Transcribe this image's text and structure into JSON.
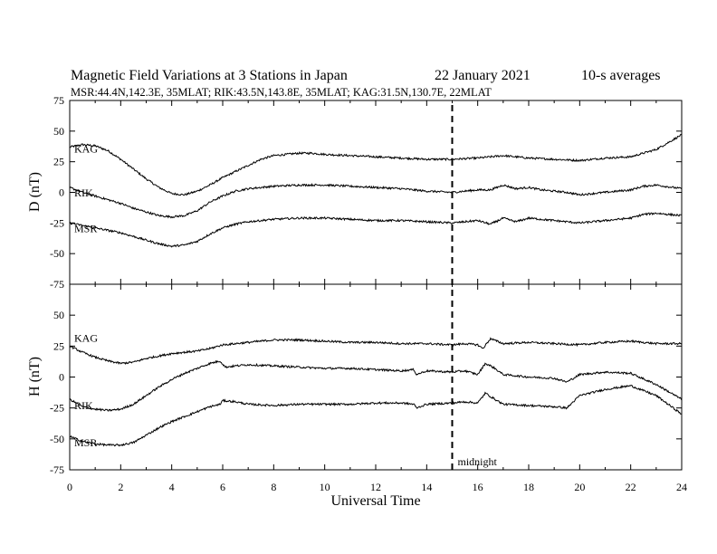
{
  "header": {
    "title": "Magnetic Field Variations at 3 Stations in Japan",
    "date": "22 January  2021",
    "averaging": "10-s averages",
    "stations": "MSR:44.4N,142.3E, 35MLAT;  RIK:43.5N,143.8E, 35MLAT;  KAG:31.5N,130.7E, 22MLAT"
  },
  "chart_data": [
    {
      "type": "line",
      "panel": "top",
      "ylabel": "D (nT)",
      "xlabel": "",
      "xlim": [
        0,
        24
      ],
      "ylim": [
        -75,
        75
      ],
      "xticks": [
        0,
        2,
        4,
        6,
        8,
        10,
        12,
        14,
        16,
        18,
        20,
        22,
        24
      ],
      "yticks": [
        -75,
        -50,
        -25,
        0,
        25,
        50,
        75
      ],
      "ytick_labels": [
        "-75",
        "-50",
        "-25",
        "0",
        "25",
        "50",
        "75"
      ],
      "grid": false,
      "series": [
        {
          "name": "KAG",
          "x": [
            0,
            0.5,
            1,
            1.5,
            2,
            2.5,
            3,
            3.5,
            4,
            4.5,
            5,
            5.5,
            6,
            6.5,
            7,
            7.5,
            8,
            8.5,
            9,
            9.5,
            10,
            11,
            12,
            13,
            14,
            15,
            16,
            16.5,
            17,
            17.5,
            18,
            19,
            20,
            21,
            22,
            23,
            24
          ],
          "y": [
            37,
            39,
            38,
            34,
            27,
            19,
            11,
            4,
            -1,
            -2,
            1,
            6,
            12,
            17,
            22,
            27,
            30,
            31,
            32,
            32,
            31,
            30,
            29,
            28,
            27,
            27,
            28,
            29,
            30,
            29,
            28,
            27,
            26,
            28,
            29,
            35,
            47
          ]
        },
        {
          "name": "RIK",
          "x": [
            0,
            0.5,
            1,
            1.5,
            2,
            2.5,
            3,
            3.5,
            4,
            4.5,
            5,
            5.5,
            6,
            6.5,
            7,
            8,
            9,
            10,
            11,
            12,
            13,
            14,
            15,
            15.5,
            16,
            16.5,
            17,
            17.5,
            18,
            18.5,
            19,
            19.5,
            20,
            21,
            22,
            22.5,
            23,
            24
          ],
          "y": [
            4,
            0,
            -3,
            -6,
            -9,
            -13,
            -16,
            -19,
            -20,
            -19,
            -15,
            -8,
            -3,
            1,
            3,
            5,
            6,
            6,
            5,
            4,
            3,
            1,
            0,
            1,
            2,
            2,
            6,
            3,
            4,
            2,
            1,
            0,
            -2,
            0,
            2,
            5,
            6,
            3
          ]
        },
        {
          "name": "MSR",
          "x": [
            0,
            0.5,
            1,
            1.5,
            2,
            2.5,
            3,
            3.5,
            4,
            4.5,
            5,
            5.5,
            6,
            6.5,
            7,
            8,
            9,
            10,
            11,
            12,
            13,
            14,
            15,
            15.5,
            16,
            16.5,
            17,
            17.5,
            18,
            18.5,
            19,
            19.5,
            20,
            21,
            22,
            22.5,
            23,
            24
          ],
          "y": [
            -25,
            -27,
            -29,
            -31,
            -33,
            -36,
            -39,
            -42,
            -44,
            -43,
            -40,
            -34,
            -29,
            -26,
            -24,
            -22,
            -21,
            -21,
            -22,
            -23,
            -23,
            -24,
            -25,
            -24,
            -23,
            -26,
            -21,
            -24,
            -21,
            -22,
            -23,
            -24,
            -25,
            -23,
            -21,
            -18,
            -17,
            -19
          ]
        }
      ]
    },
    {
      "type": "line",
      "panel": "bottom",
      "ylabel": "H (nT)",
      "xlabel": "Universal Time",
      "xlim": [
        0,
        24
      ],
      "ylim": [
        -75,
        75
      ],
      "xticks": [
        0,
        2,
        4,
        6,
        8,
        10,
        12,
        14,
        16,
        18,
        20,
        22,
        24
      ],
      "yticks": [
        -75,
        -50,
        -25,
        0,
        25,
        50,
        75
      ],
      "ytick_labels": [
        "-75",
        "-50",
        "-25",
        "0",
        "25",
        "50",
        ""
      ],
      "grid": false,
      "annotations": [
        {
          "x": 15,
          "label": "midnight",
          "style": "dashed-vertical-line"
        }
      ],
      "series": [
        {
          "name": "KAG",
          "x": [
            0,
            0.5,
            1,
            1.5,
            2,
            2.5,
            3,
            3.5,
            4,
            4.5,
            5,
            5.5,
            6,
            6.5,
            7,
            8,
            9,
            10,
            11,
            12,
            13,
            14,
            15,
            15.5,
            16,
            16.2,
            16.5,
            17,
            18,
            19,
            20,
            21,
            22,
            23,
            24
          ],
          "y": [
            25,
            20,
            16,
            13,
            11,
            12,
            15,
            17,
            19,
            20,
            21,
            23,
            26,
            27,
            28,
            30,
            30,
            29,
            28,
            28,
            27,
            27,
            26,
            27,
            26,
            23,
            31,
            27,
            28,
            27,
            26,
            28,
            29,
            27,
            27
          ]
        },
        {
          "name": "RIK",
          "x": [
            0,
            0.5,
            1,
            1.5,
            2,
            2.5,
            3,
            3.5,
            4,
            4.5,
            5,
            5.5,
            5.9,
            6.1,
            6.5,
            7,
            8,
            9,
            10,
            11,
            12,
            13,
            13.5,
            13.6,
            14,
            15,
            15.5,
            16,
            16.3,
            16.6,
            17,
            18,
            19,
            19.5,
            20,
            21,
            22,
            23,
            24
          ],
          "y": [
            -18,
            -24,
            -26,
            -27,
            -26,
            -22,
            -15,
            -8,
            -2,
            3,
            7,
            11,
            13,
            8,
            9,
            10,
            9,
            8,
            7,
            7,
            6,
            5,
            6,
            2,
            5,
            4,
            5,
            2,
            11,
            8,
            2,
            0,
            -1,
            -4,
            2,
            4,
            3,
            -6,
            -18
          ]
        },
        {
          "name": "MSR",
          "x": [
            0,
            0.5,
            1,
            1.5,
            2,
            2.5,
            3,
            3.5,
            4,
            4.5,
            5,
            5.5,
            5.9,
            6,
            6.5,
            7,
            8,
            9,
            10,
            11,
            12,
            13,
            13.5,
            13.6,
            14,
            15,
            15.5,
            16,
            16.3,
            16.6,
            17,
            18,
            19,
            19.5,
            20,
            21,
            22,
            23,
            24
          ],
          "y": [
            -48,
            -52,
            -54,
            -55,
            -55,
            -53,
            -47,
            -41,
            -36,
            -32,
            -28,
            -24,
            -22,
            -19,
            -20,
            -22,
            -23,
            -22,
            -22,
            -22,
            -21,
            -21,
            -22,
            -25,
            -22,
            -21,
            -20,
            -21,
            -13,
            -17,
            -22,
            -23,
            -24,
            -25,
            -15,
            -10,
            -7,
            -15,
            -30
          ]
        }
      ]
    }
  ]
}
